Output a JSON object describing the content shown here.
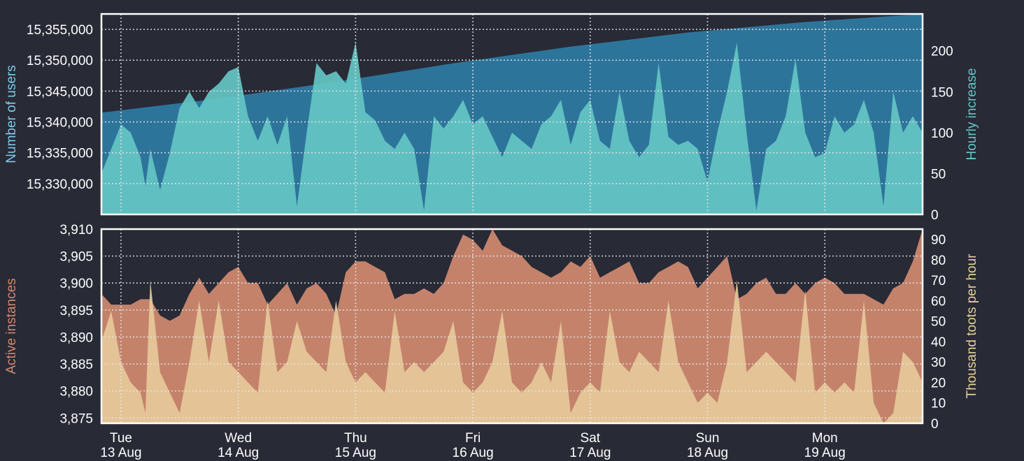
{
  "colors": {
    "background": "#282a36",
    "users_area": "#2e7ba4",
    "hourly_increase_area": "#65c6c4",
    "instances_area": "#d18a70",
    "toots_area": "#e6c99a",
    "users_axis_label": "#7ecbe8",
    "hourly_axis_label": "#65c6c4",
    "instances_axis_label": "#d18a70",
    "toots_axis_label": "#e6d29a"
  },
  "chart_data": [
    {
      "type": "area",
      "axes": "dual-y",
      "grid": true,
      "ylabel_left": "Number of users",
      "ylabel_right": "Hourly increase",
      "xlim": [
        -4,
        164
      ],
      "ylim_left": [
        15325000,
        15357500
      ],
      "ylim_right": [
        0,
        245
      ],
      "yticks_left": [
        "15,330,000",
        "15,335,000",
        "15,340,000",
        "15,345,000",
        "15,350,000",
        "15,355,000"
      ],
      "yticks_right": [
        "0",
        "50",
        "100",
        "150",
        "200"
      ],
      "series": [
        {
          "axis": "left",
          "color": "users_area",
          "x": [
            -4,
            20,
            44,
            68,
            92,
            116,
            140,
            164
          ],
          "y": [
            15341500,
            15343800,
            15346500,
            15349500,
            15352200,
            15354500,
            15356200,
            15357500
          ]
        },
        {
          "axis": "right",
          "color": "hourly_increase_area",
          "x": [
            -4,
            -2,
            0,
            2,
            4,
            5,
            6,
            8,
            10,
            12,
            14,
            16,
            18,
            20,
            22,
            24,
            26,
            28,
            30,
            32,
            34,
            36,
            38,
            40,
            42,
            44,
            46,
            48,
            50,
            52,
            54,
            56,
            58,
            60,
            62,
            64,
            66,
            68,
            70,
            72,
            74,
            76,
            78,
            80,
            82,
            84,
            86,
            88,
            90,
            92,
            94,
            96,
            98,
            100,
            102,
            104,
            106,
            108,
            110,
            112,
            114,
            116,
            118,
            120,
            122,
            124,
            126,
            128,
            130,
            132,
            134,
            136,
            138,
            140,
            142,
            144,
            146,
            148,
            150,
            152,
            154,
            156,
            158,
            160,
            162,
            164
          ],
          "y": [
            50,
            80,
            110,
            100,
            70,
            35,
            80,
            30,
            75,
            130,
            150,
            130,
            150,
            160,
            175,
            180,
            120,
            90,
            120,
            85,
            120,
            10,
            100,
            185,
            170,
            175,
            160,
            210,
            125,
            115,
            90,
            80,
            100,
            80,
            5,
            120,
            105,
            120,
            140,
            110,
            120,
            95,
            70,
            100,
            90,
            80,
            110,
            120,
            140,
            85,
            125,
            140,
            90,
            80,
            150,
            90,
            70,
            85,
            185,
            95,
            85,
            90,
            80,
            40,
            100,
            150,
            210,
            100,
            5,
            80,
            90,
            120,
            190,
            100,
            70,
            75,
            120,
            100,
            110,
            140,
            100,
            10,
            150,
            100,
            120,
            100
          ],
          "peaks": [
            200,
            190,
            210,
            150,
            200
          ]
        }
      ]
    },
    {
      "type": "area",
      "axes": "dual-y",
      "grid": true,
      "ylabel_left": "Active instances",
      "ylabel_right": "Thousand toots per hour",
      "xlim": [
        -4,
        164
      ],
      "ylim_left": [
        3874,
        3910
      ],
      "ylim_right": [
        0,
        95
      ],
      "yticks_left": [
        "3,875",
        "3,880",
        "3,885",
        "3,890",
        "3,895",
        "3,900",
        "3,905",
        "3,910"
      ],
      "yticks_right": [
        "0",
        "10",
        "20",
        "30",
        "40",
        "50",
        "60",
        "70",
        "80",
        "90"
      ],
      "series": [
        {
          "axis": "left",
          "color": "instances_area",
          "x": [
            -4,
            -2,
            0,
            2,
            4,
            5,
            6,
            8,
            10,
            12,
            14,
            16,
            18,
            20,
            22,
            24,
            26,
            28,
            30,
            32,
            34,
            36,
            38,
            40,
            42,
            44,
            46,
            48,
            50,
            52,
            54,
            56,
            58,
            60,
            62,
            64,
            66,
            68,
            70,
            72,
            74,
            76,
            78,
            80,
            82,
            84,
            86,
            88,
            90,
            92,
            94,
            96,
            98,
            100,
            102,
            104,
            106,
            108,
            110,
            112,
            114,
            116,
            118,
            120,
            122,
            124,
            126,
            128,
            130,
            132,
            134,
            136,
            138,
            140,
            142,
            144,
            146,
            148,
            150,
            152,
            154,
            156,
            158,
            160,
            162,
            164
          ],
          "y": [
            3898,
            3896,
            3896,
            3896,
            3897,
            3897,
            3897,
            3894,
            3893,
            3894,
            3898,
            3901,
            3898,
            3900,
            3902,
            3903,
            3900,
            3900,
            3896,
            3898,
            3900,
            3896,
            3899,
            3900,
            3898,
            3894,
            3902,
            3904,
            3904,
            3903,
            3902,
            3897,
            3898,
            3898,
            3899,
            3898,
            3900,
            3905,
            3909,
            3908,
            3906,
            3910,
            3907,
            3906,
            3905,
            3903,
            3902,
            3901,
            3902,
            3904,
            3903,
            3905,
            3901,
            3902,
            3903,
            3904,
            3900,
            3900,
            3902,
            3903,
            3904,
            3903,
            3899,
            3901,
            3903,
            3905,
            3897,
            3898,
            3900,
            3901,
            3898,
            3898,
            3900,
            3898,
            3900,
            3901,
            3900,
            3898,
            3898,
            3898,
            3897,
            3896,
            3899,
            3900,
            3904,
            3910
          ]
        },
        {
          "axis": "right",
          "color": "toots_area",
          "x": [
            -4,
            -2,
            0,
            2,
            4,
            5,
            6,
            8,
            10,
            12,
            14,
            16,
            18,
            20,
            22,
            24,
            26,
            28,
            30,
            32,
            34,
            36,
            38,
            40,
            42,
            44,
            46,
            48,
            50,
            52,
            54,
            56,
            58,
            60,
            62,
            64,
            66,
            68,
            70,
            72,
            74,
            76,
            78,
            80,
            82,
            84,
            86,
            88,
            90,
            92,
            94,
            96,
            98,
            100,
            102,
            104,
            106,
            108,
            110,
            112,
            114,
            116,
            118,
            120,
            122,
            124,
            126,
            128,
            130,
            132,
            134,
            136,
            138,
            140,
            142,
            144,
            146,
            148,
            150,
            152,
            154,
            156,
            158,
            160,
            162,
            164
          ],
          "y": [
            40,
            55,
            30,
            20,
            15,
            5,
            70,
            25,
            15,
            5,
            30,
            60,
            30,
            60,
            30,
            25,
            20,
            15,
            60,
            25,
            30,
            50,
            35,
            30,
            25,
            60,
            30,
            20,
            25,
            20,
            15,
            55,
            25,
            30,
            25,
            30,
            35,
            50,
            20,
            15,
            20,
            30,
            55,
            20,
            15,
            20,
            30,
            20,
            50,
            5,
            15,
            20,
            15,
            55,
            30,
            25,
            35,
            30,
            25,
            60,
            30,
            20,
            10,
            15,
            10,
            30,
            70,
            25,
            30,
            35,
            30,
            25,
            20,
            65,
            15,
            20,
            15,
            20,
            15,
            60,
            10,
            0,
            5,
            35,
            30,
            20
          ],
          "peaks": [
            70,
            60,
            70,
            80
          ]
        }
      ],
      "xticks": [
        {
          "x": 0,
          "day": "Tue",
          "date": "13 Aug"
        },
        {
          "x": 24,
          "day": "Wed",
          "date": "14 Aug"
        },
        {
          "x": 48,
          "day": "Thu",
          "date": "15 Aug"
        },
        {
          "x": 72,
          "day": "Fri",
          "date": "16 Aug"
        },
        {
          "x": 96,
          "day": "Sat",
          "date": "17 Aug"
        },
        {
          "x": 120,
          "day": "Sun",
          "date": "18 Aug"
        },
        {
          "x": 144,
          "day": "Mon",
          "date": "19 Aug"
        }
      ]
    }
  ]
}
